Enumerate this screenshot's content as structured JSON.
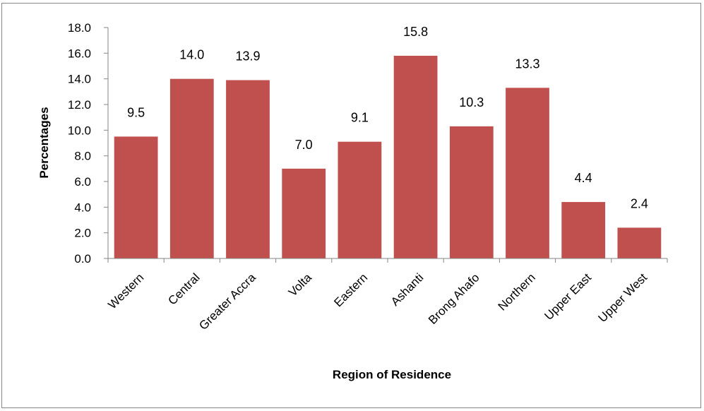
{
  "chart_data": {
    "type": "bar",
    "title": "",
    "xlabel": "Region of Residence",
    "ylabel": "Percentages",
    "ylim": [
      0,
      18
    ],
    "ytick_step": 2,
    "ytick_labels": [
      "0.0",
      "2.0",
      "4.0",
      "6.0",
      "8.0",
      "10.0",
      "12.0",
      "14.0",
      "16.0",
      "18.0"
    ],
    "categories": [
      "Western",
      "Central",
      "Greater Accra",
      "Volta",
      "Eastern",
      "Ashanti",
      "Brong Ahafo",
      "Northern",
      "Upper East",
      "Upper West"
    ],
    "values": [
      9.5,
      14.0,
      13.9,
      7.0,
      9.1,
      15.8,
      10.3,
      13.3,
      4.4,
      2.4
    ],
    "value_labels": [
      "9.5",
      "14.0",
      "13.9",
      "7.0",
      "9.1",
      "15.8",
      "10.3",
      "13.3",
      "4.4",
      "2.4"
    ],
    "bar_color": "#C0504D",
    "grid": false,
    "legend": "none"
  }
}
